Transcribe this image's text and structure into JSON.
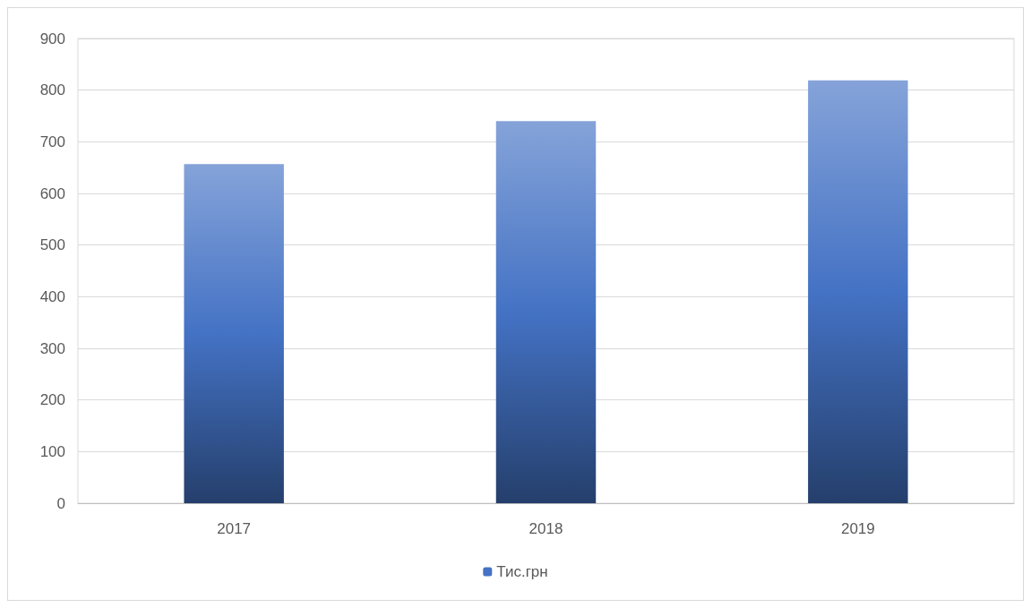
{
  "chart_data": {
    "type": "bar",
    "categories": [
      "2017",
      "2018",
      "2019"
    ],
    "series": [
      {
        "name": "Тис.грн",
        "color": "#4472c4",
        "values": [
          657,
          740,
          819
        ]
      }
    ],
    "ylim": [
      0,
      900
    ],
    "yticks": [
      0,
      100,
      200,
      300,
      400,
      500,
      600,
      700,
      800,
      900
    ],
    "grid": "y",
    "legend": "bottom"
  }
}
